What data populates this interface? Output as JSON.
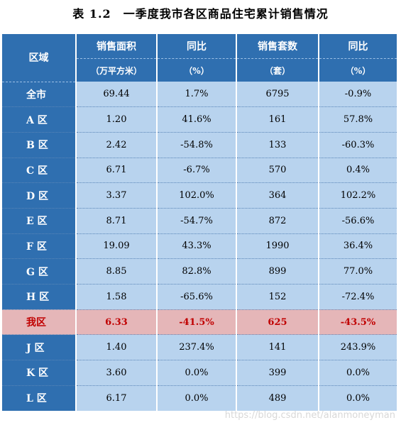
{
  "title": "表 1.2　一季度我市各区商品住宅累计销售情况",
  "header": {
    "region": "区域",
    "area": "销售面积",
    "area_unit": "（万平方米）",
    "yoy1": "同比",
    "yoy1_unit": "（%）",
    "units": "销售套数",
    "units_unit": "（套）",
    "yoy2": "同比",
    "yoy2_unit": "（%）"
  },
  "rows": [
    {
      "name": "全市",
      "area": "69.44",
      "yoy1": "1.7%",
      "units": "6795",
      "yoy2": "-0.9%"
    },
    {
      "name": "A 区",
      "area": "1.20",
      "yoy1": "41.6%",
      "units": "161",
      "yoy2": "57.8%"
    },
    {
      "name": "B 区",
      "area": "2.42",
      "yoy1": "-54.8%",
      "units": "133",
      "yoy2": "-60.3%"
    },
    {
      "name": "C 区",
      "area": "6.71",
      "yoy1": "-6.7%",
      "units": "570",
      "yoy2": "0.4%"
    },
    {
      "name": "D 区",
      "area": "3.37",
      "yoy1": "102.0%",
      "units": "364",
      "yoy2": "102.2%"
    },
    {
      "name": "E 区",
      "area": "8.71",
      "yoy1": "-54.7%",
      "units": "872",
      "yoy2": "-56.6%"
    },
    {
      "name": "F 区",
      "area": "19.09",
      "yoy1": "43.3%",
      "units": "1990",
      "yoy2": "36.4%"
    },
    {
      "name": "G 区",
      "area": "8.85",
      "yoy1": "82.8%",
      "units": "899",
      "yoy2": "77.0%"
    },
    {
      "name": "H 区",
      "area": "1.58",
      "yoy1": "-65.6%",
      "units": "152",
      "yoy2": "-72.4%"
    },
    {
      "name": "我区",
      "area": "6.33",
      "yoy1": "-41.5%",
      "units": "625",
      "yoy2": "-43.5%"
    },
    {
      "name": "J 区",
      "area": "1.40",
      "yoy1": "237.4%",
      "units": "141",
      "yoy2": "243.9%"
    },
    {
      "name": "K 区",
      "area": "3.60",
      "yoy1": "0.0%",
      "units": "399",
      "yoy2": "0.0%"
    },
    {
      "name": "L 区",
      "area": "6.17",
      "yoy1": "0.0%",
      "units": "489",
      "yoy2": "0.0%"
    }
  ],
  "highlight_color": "#c00000",
  "watermark": "https://blog.csdn.net/alanmoneyman"
}
